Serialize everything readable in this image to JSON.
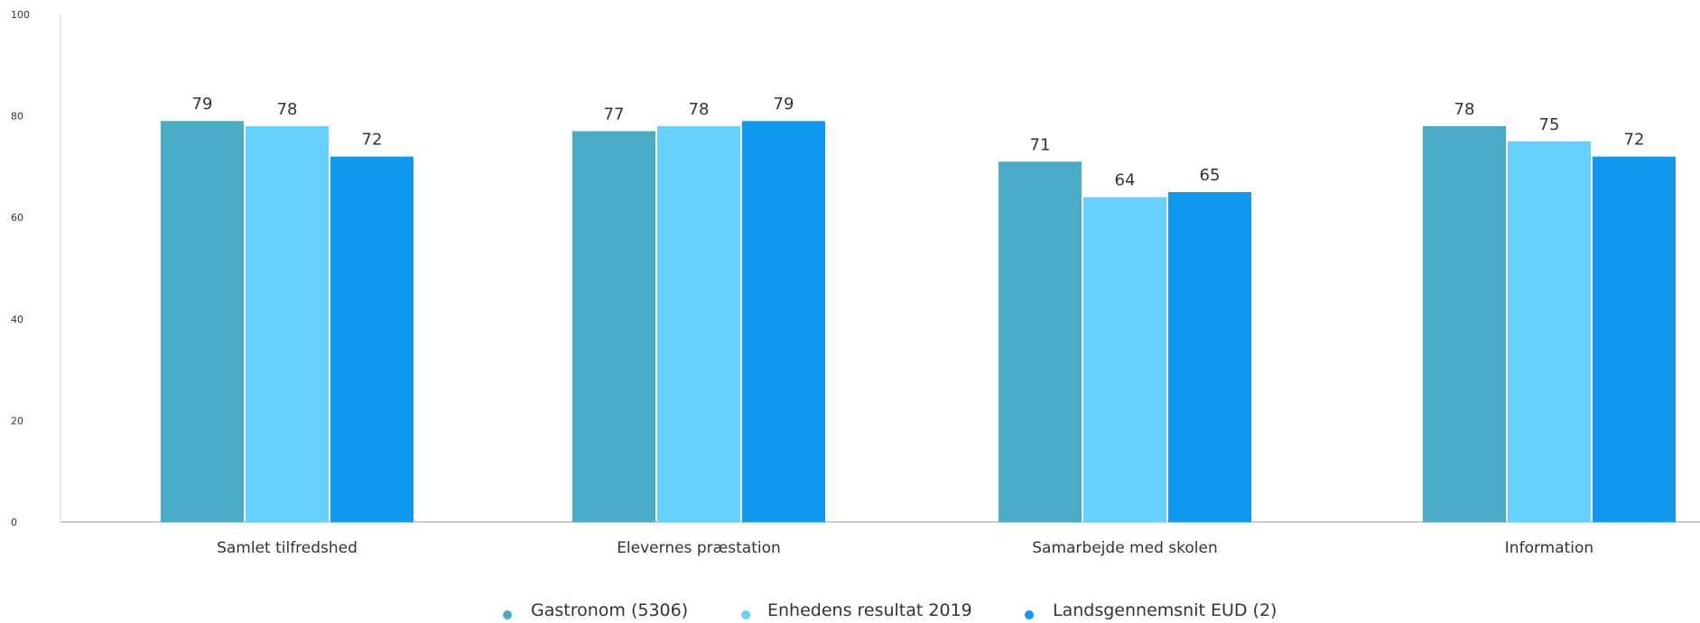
{
  "chart_data": {
    "type": "bar",
    "title": "",
    "xlabel": "",
    "ylabel": "",
    "ylim": [
      0,
      100
    ],
    "yticks": [
      0,
      20,
      40,
      60,
      80,
      100
    ],
    "grid": false,
    "legend_position": "bottom",
    "categories": [
      "Samlet tilfredshed",
      "Elevernes præstation",
      "Samarbejde med skolen",
      "Information"
    ],
    "series": [
      {
        "name": "Gastronom (5306)",
        "color": "#4aabc6",
        "values": [
          79,
          77,
          71,
          78
        ]
      },
      {
        "name": "Enhedens resultat 2019",
        "color": "#66d0ff",
        "values": [
          78,
          78,
          64,
          75
        ]
      },
      {
        "name": "Landsgennemsnit EUD (2)",
        "color": "#1198ef",
        "values": [
          72,
          79,
          65,
          72
        ]
      }
    ]
  }
}
